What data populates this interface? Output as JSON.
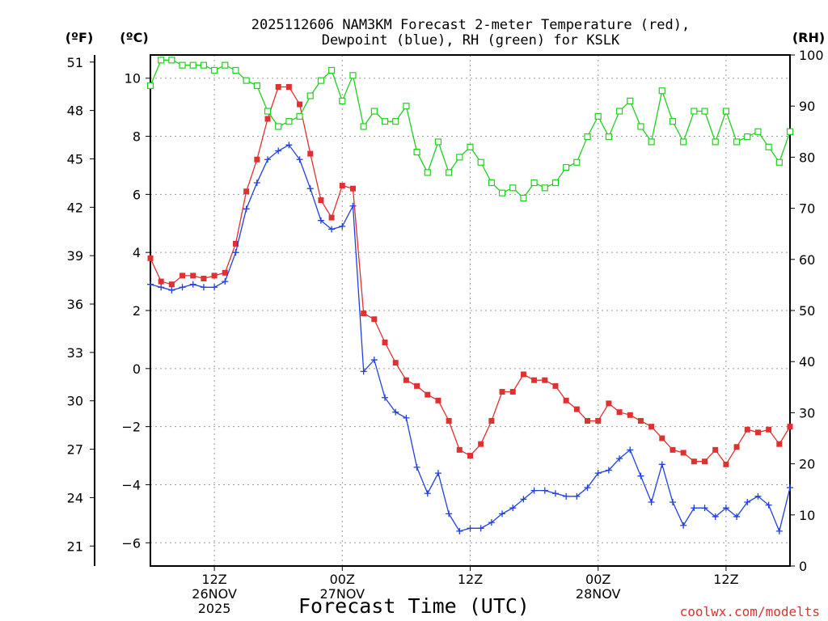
{
  "chart_data": {
    "type": "line",
    "title_line1": "2025112606 NAM3KM Forecast 2-meter Temperature (red),",
    "title_line2": "Dewpoint (blue), RH (green) for KSLK",
    "xlabel": "Forecast Time (UTC)",
    "credit": "coolwx.com/modelts",
    "units": {
      "f": "(ºF)",
      "c": "(ºC)",
      "rh": "(RH)"
    },
    "hour_range": [
      6,
      66
    ],
    "c_range": [
      -6.8,
      10.8
    ],
    "rh_range": [
      0,
      100
    ],
    "f_ticks": [
      "51",
      "48",
      "45",
      "42",
      "39",
      "36",
      "33",
      "30",
      "27",
      "24",
      "21"
    ],
    "c_ticks": [
      "10",
      "8",
      "6",
      "4",
      "2",
      "0",
      "−2",
      "−4",
      "−6"
    ],
    "rh_ticks": [
      "100",
      "90",
      "80",
      "70",
      "60",
      "50",
      "40",
      "30",
      "20",
      "10",
      "0"
    ],
    "x_ticks": [
      {
        "hour": 12,
        "lines": [
          "12Z",
          "26NOV",
          "2025"
        ]
      },
      {
        "hour": 24,
        "lines": [
          "00Z",
          "27NOV"
        ]
      },
      {
        "hour": 36,
        "lines": [
          "12Z"
        ]
      },
      {
        "hour": 48,
        "lines": [
          "00Z",
          "28NOV"
        ]
      },
      {
        "hour": 60,
        "lines": [
          "12Z"
        ]
      }
    ],
    "series": [
      {
        "name": "Temperature",
        "unit": "C",
        "color": "#e03030",
        "marker": "filled-square",
        "values": [
          3.8,
          3.0,
          2.9,
          3.2,
          3.2,
          3.1,
          3.2,
          3.3,
          4.3,
          6.1,
          7.2,
          8.6,
          9.7,
          9.7,
          9.1,
          7.4,
          5.8,
          5.2,
          6.3,
          6.2,
          1.9,
          1.7,
          0.9,
          0.2,
          -0.4,
          -0.6,
          -0.9,
          -1.1,
          -1.8,
          -2.8,
          -3.0,
          -2.6,
          -1.8,
          -0.8,
          -0.8,
          -0.2,
          -0.4,
          -0.4,
          -0.6,
          -1.1,
          -1.4,
          -1.8,
          -1.8,
          -1.2,
          -1.5,
          -1.6,
          -1.8,
          -2.0,
          -2.4,
          -2.8,
          -2.9,
          -3.2,
          -3.2,
          -2.8,
          -3.3,
          -2.7,
          -2.1,
          -2.2,
          -2.1,
          -2.6,
          -2.0
        ]
      },
      {
        "name": "Dewpoint",
        "unit": "C",
        "color": "#2040e0",
        "marker": "plus",
        "values": [
          2.9,
          2.8,
          2.7,
          2.8,
          2.9,
          2.8,
          2.8,
          3.0,
          4.0,
          5.5,
          6.4,
          7.2,
          7.5,
          7.7,
          7.2,
          6.2,
          5.1,
          4.8,
          4.9,
          5.6,
          -0.1,
          0.3,
          -1.0,
          -1.5,
          -1.7,
          -3.4,
          -4.3,
          -3.6,
          -5.0,
          -5.6,
          -5.5,
          -5.5,
          -5.3,
          -5.0,
          -4.8,
          -4.5,
          -4.2,
          -4.2,
          -4.3,
          -4.4,
          -4.4,
          -4.1,
          -3.6,
          -3.5,
          -3.1,
          -2.8,
          -3.7,
          -4.6,
          -3.3,
          -4.6,
          -5.4,
          -4.8,
          -4.8,
          -5.1,
          -4.8,
          -5.1,
          -4.6,
          -4.4,
          -4.7,
          -5.6,
          -4.1
        ]
      },
      {
        "name": "RH",
        "unit": "%",
        "color": "#20d020",
        "marker": "open-square",
        "values": [
          94,
          99,
          99,
          98,
          98,
          98,
          97,
          98,
          97,
          95,
          94,
          89,
          86,
          87,
          88,
          92,
          95,
          97,
          91,
          96,
          86,
          89,
          87,
          87,
          90,
          81,
          77,
          83,
          77,
          80,
          82,
          79,
          75,
          73,
          74,
          72,
          75,
          74,
          75,
          78,
          79,
          84,
          88,
          84,
          89,
          91,
          86,
          83,
          93,
          87,
          83,
          89,
          89,
          83,
          89,
          83,
          84,
          85,
          82,
          79,
          85
        ]
      }
    ]
  }
}
